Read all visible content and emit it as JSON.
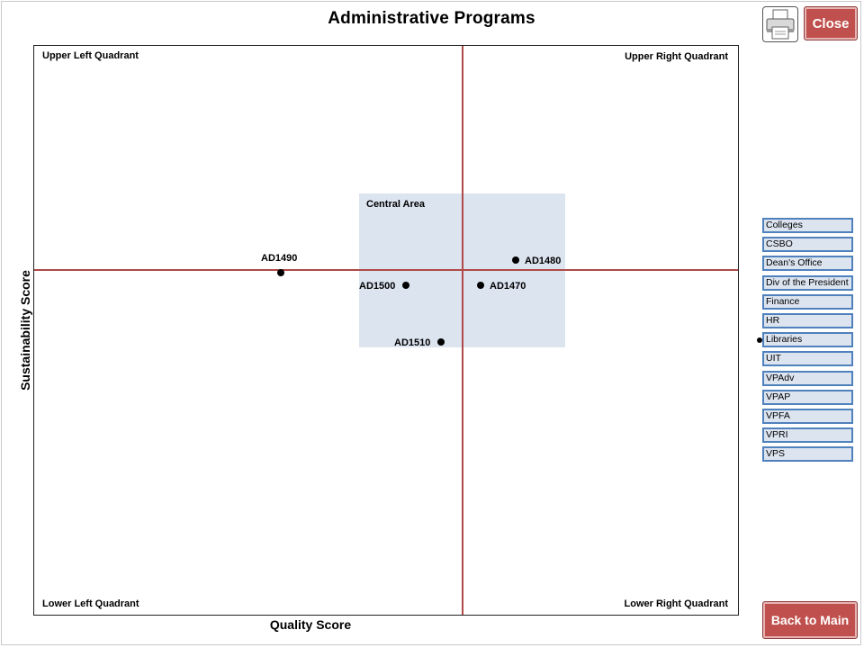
{
  "page": {
    "title": "Administrative Programs",
    "close_label": "Close",
    "back_label": "Back to Main",
    "print_icon": "printer-icon"
  },
  "chart_data": {
    "type": "scatter",
    "title": "Administrative Programs",
    "xlabel": "Quality Score",
    "ylabel": "Sustainability Score",
    "quadrants": {
      "upper_left": "Upper Left Quadrant",
      "upper_right": "Upper Right Quadrant",
      "lower_left": "Lower Left Quadrant",
      "lower_right": "Lower Right Quadrant",
      "central": "Central Area"
    },
    "grid": false,
    "points": [
      {
        "label": "AD1490"
      },
      {
        "label": "AD1480"
      },
      {
        "label": "AD1500"
      },
      {
        "label": "AD1470"
      },
      {
        "label": "AD1510"
      }
    ]
  },
  "filters": {
    "items": [
      "Colleges",
      "CSBO",
      "Dean's Office",
      "Div of the President",
      "Finance",
      "HR",
      "Libraries",
      "UIT",
      "VPAdv",
      "VPAP",
      "VPFA",
      "VPRI",
      "VPS"
    ],
    "marked": "Libraries",
    "border_color": "#4f81bd",
    "fill_color": "#dce4f0"
  },
  "colors": {
    "button": "#c0504d",
    "axis_line": "#b04a48",
    "central_fill": "#dce4f0"
  }
}
